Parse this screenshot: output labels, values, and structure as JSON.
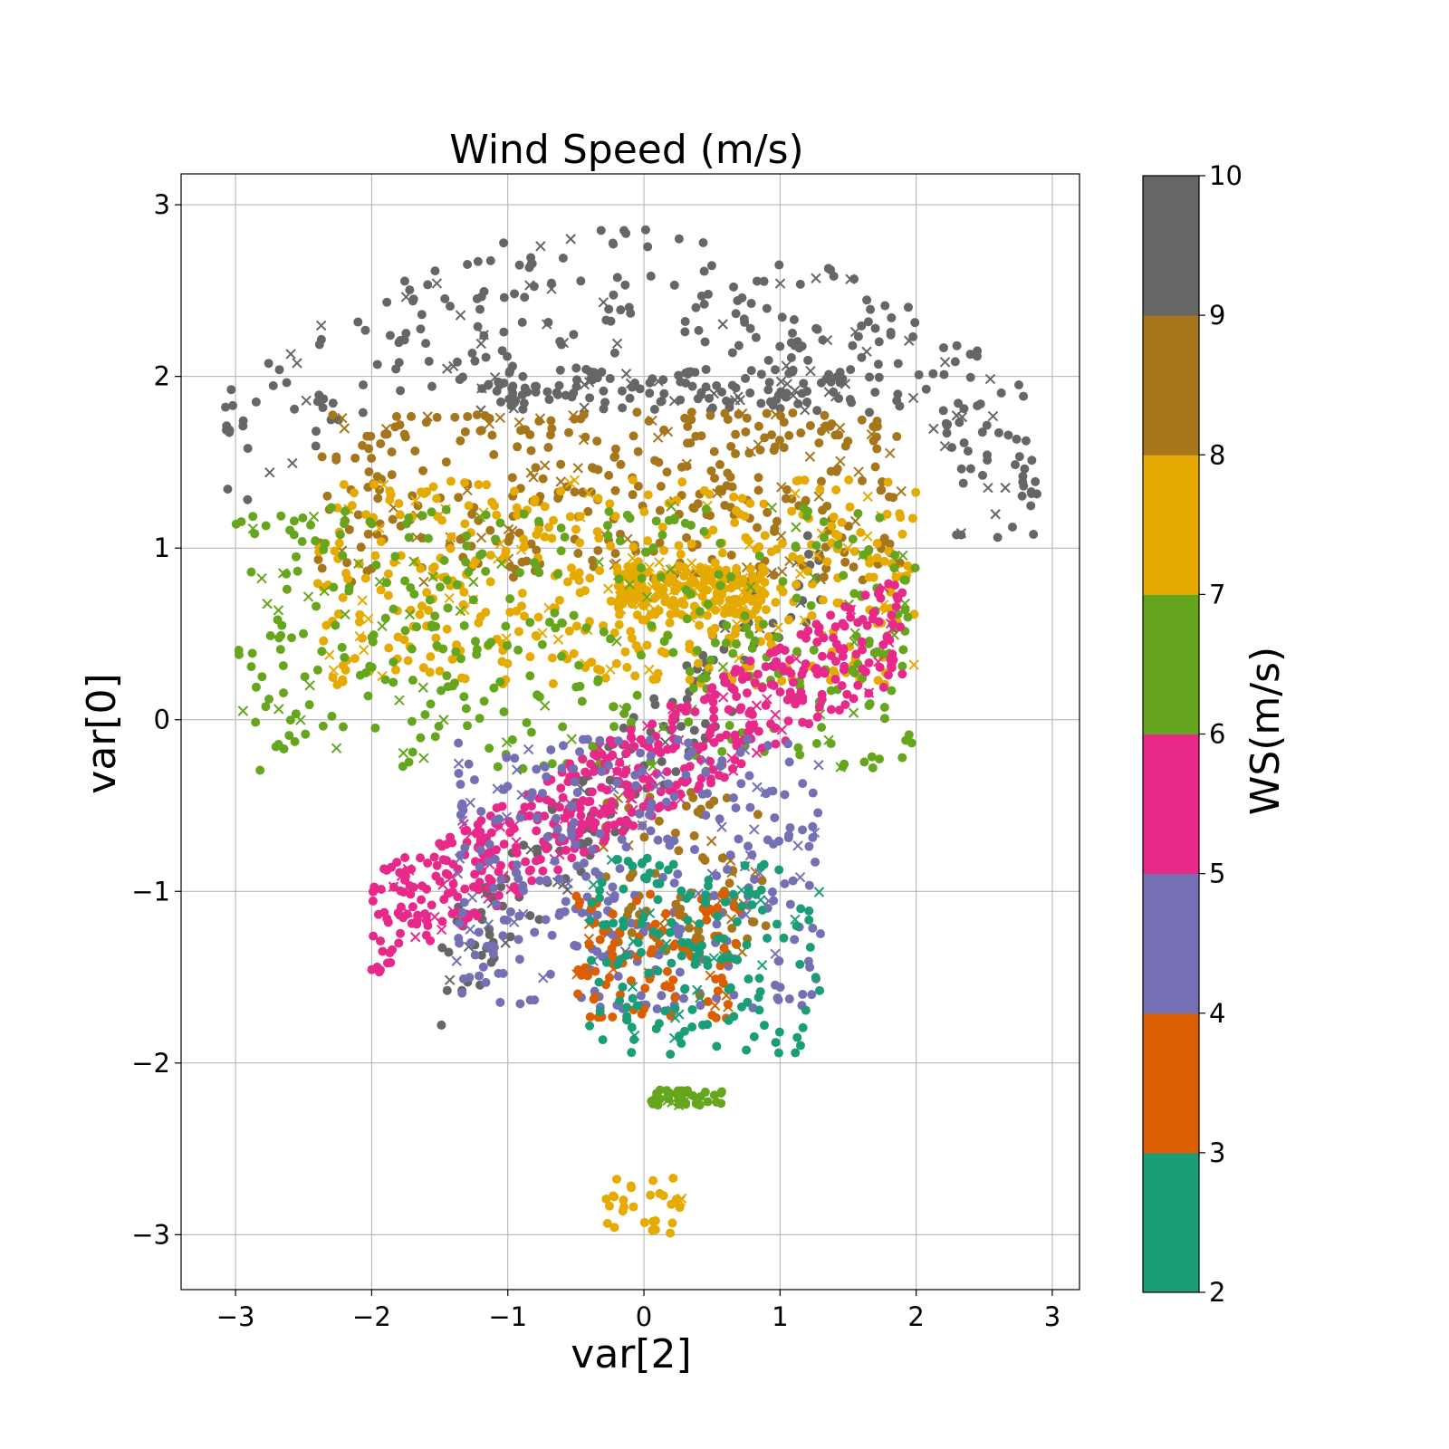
{
  "chart_data": {
    "type": "scatter",
    "title": "Wind Speed (m/s)",
    "xlabel": "var[2]",
    "ylabel": "var[0]",
    "xlim": [
      -3.4,
      3.2
    ],
    "ylim": [
      -3.32,
      3.18
    ],
    "xticks": [
      -3,
      -2,
      -1,
      0,
      1,
      2,
      3
    ],
    "yticks": [
      -3,
      -2,
      -1,
      0,
      1,
      2,
      3
    ],
    "xtick_labels": [
      "−3",
      "−2",
      "−1",
      "0",
      "1",
      "2",
      "3"
    ],
    "ytick_labels": [
      "−3",
      "−2",
      "−1",
      "0",
      "1",
      "2",
      "3"
    ],
    "grid": true,
    "markers": [
      "circle",
      "x"
    ],
    "colorbar": {
      "label": "WS(m/s)",
      "min": 2,
      "max": 10,
      "ticks": [
        2,
        3,
        4,
        5,
        6,
        7,
        8,
        9,
        10
      ],
      "tick_labels": [
        "2",
        "3",
        "4",
        "5",
        "6",
        "7",
        "8",
        "9",
        "10"
      ],
      "bins": [
        {
          "range": [
            2,
            3
          ],
          "color": "#1b9e77"
        },
        {
          "range": [
            3,
            4
          ],
          "color": "#d95f02"
        },
        {
          "range": [
            4,
            5
          ],
          "color": "#7570b3"
        },
        {
          "range": [
            5,
            6
          ],
          "color": "#e7298a"
        },
        {
          "range": [
            6,
            7
          ],
          "color": "#66a61e"
        },
        {
          "range": [
            7,
            8
          ],
          "color": "#e6ab02"
        },
        {
          "range": [
            8,
            9
          ],
          "color": "#a6761d"
        },
        {
          "range": [
            9,
            10
          ],
          "color": "#666666"
        }
      ]
    },
    "clusters": [
      {
        "ws": 9.5,
        "x_range": [
          -3.1,
          2.9
        ],
        "y_range": [
          1.7,
          2.88
        ],
        "arc": true,
        "approx_points": 260
      },
      {
        "ws": 9.5,
        "x_range": [
          -1.2,
          1.6
        ],
        "y_range": [
          1.8,
          2.05
        ],
        "approx_points": 150
      },
      {
        "ws": 9.5,
        "x_range": [
          2.2,
          2.9
        ],
        "y_range": [
          1.05,
          1.9
        ],
        "approx_points": 25
      },
      {
        "ws": 9.5,
        "x_range": [
          -1.5,
          1.3
        ],
        "y_range": [
          -1.5,
          0.9
        ],
        "diagonal": true,
        "approx_points": 160
      },
      {
        "ws": 8.5,
        "x_range": [
          -2.4,
          1.9
        ],
        "y_range": [
          0.8,
          1.8
        ],
        "approx_points": 380
      },
      {
        "ws": 8.5,
        "x_range": [
          -0.3,
          0.9
        ],
        "y_range": [
          -1.4,
          -0.4
        ],
        "approx_points": 90
      },
      {
        "ws": 7.5,
        "x_range": [
          -2.4,
          2.0
        ],
        "y_range": [
          0.2,
          1.4
        ],
        "approx_points": 460
      },
      {
        "ws": 7.5,
        "x_range": [
          -0.2,
          0.9
        ],
        "y_range": [
          0.6,
          0.9
        ],
        "approx_points": 200
      },
      {
        "ws": 7.5,
        "x_range": [
          -0.3,
          0.3
        ],
        "y_range": [
          -3.0,
          -2.65
        ],
        "approx_points": 30
      },
      {
        "ws": 6.5,
        "x_range": [
          -3.0,
          2.0
        ],
        "y_range": [
          -0.3,
          1.25
        ],
        "approx_points": 430
      },
      {
        "ws": 6.5,
        "x_range": [
          0.05,
          0.6
        ],
        "y_range": [
          -2.25,
          -2.15
        ],
        "approx_points": 45
      },
      {
        "ws": 5.5,
        "x_range": [
          -2.0,
          1.9
        ],
        "y_range": [
          -1.2,
          0.55
        ],
        "diagonal": true,
        "approx_points": 560
      },
      {
        "ws": 4.5,
        "x_range": [
          -1.4,
          1.3
        ],
        "y_range": [
          -1.7,
          -0.1
        ],
        "approx_points": 330
      },
      {
        "ws": 3.5,
        "x_range": [
          -0.5,
          0.7
        ],
        "y_range": [
          -1.75,
          -1.0
        ],
        "approx_points": 110
      },
      {
        "ws": 2.5,
        "x_range": [
          -0.4,
          1.3
        ],
        "y_range": [
          -1.95,
          -0.8
        ],
        "approx_points": 170
      }
    ]
  }
}
